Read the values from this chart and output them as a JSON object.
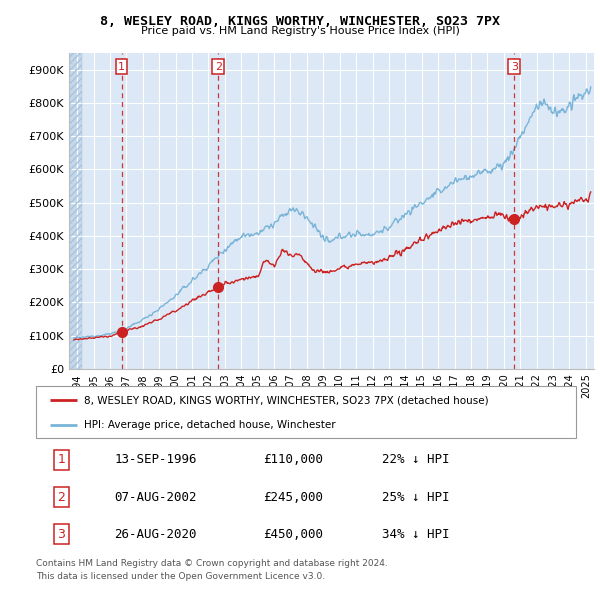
{
  "title1": "8, WESLEY ROAD, KINGS WORTHY, WINCHESTER, SO23 7PX",
  "title2": "Price paid vs. HM Land Registry's House Price Index (HPI)",
  "ylim": [
    0,
    950000
  ],
  "xlim_start": 1993.5,
  "xlim_end": 2025.5,
  "yticks": [
    0,
    100000,
    200000,
    300000,
    400000,
    500000,
    600000,
    700000,
    800000,
    900000
  ],
  "ytick_labels": [
    "£0",
    "£100K",
    "£200K",
    "£300K",
    "£400K",
    "£500K",
    "£600K",
    "£700K",
    "£800K",
    "£900K"
  ],
  "xtick_years": [
    1994,
    1995,
    1996,
    1997,
    1998,
    1999,
    2000,
    2001,
    2002,
    2003,
    2004,
    2005,
    2006,
    2007,
    2008,
    2009,
    2010,
    2011,
    2012,
    2013,
    2014,
    2015,
    2016,
    2017,
    2018,
    2019,
    2020,
    2021,
    2022,
    2023,
    2024,
    2025
  ],
  "hpi_color": "#7ab4d8",
  "price_paid_color": "#cc2222",
  "marker_box_color": "#cc2222",
  "sale1_x": 1996.7,
  "sale1_y": 110000,
  "sale1_label": "1",
  "sale1_date": "13-SEP-1996",
  "sale1_price": "£110,000",
  "sale1_hpi": "22% ↓ HPI",
  "sale2_x": 2002.6,
  "sale2_y": 245000,
  "sale2_label": "2",
  "sale2_date": "07-AUG-2002",
  "sale2_price": "£245,000",
  "sale2_hpi": "25% ↓ HPI",
  "sale3_x": 2020.65,
  "sale3_y": 450000,
  "sale3_label": "3",
  "sale3_date": "26-AUG-2020",
  "sale3_price": "£450,000",
  "sale3_hpi": "34% ↓ HPI",
  "legend_label_price": "8, WESLEY ROAD, KINGS WORTHY, WINCHESTER, SO23 7PX (detached house)",
  "legend_label_hpi": "HPI: Average price, detached house, Winchester",
  "footnote1": "Contains HM Land Registry data © Crown copyright and database right 2024.",
  "footnote2": "This data is licensed under the Open Government Licence v3.0.",
  "bg_color": "#ffffff",
  "plot_bg_color": "#dce8f5",
  "grid_color": "#ffffff",
  "hatch_area_color": "#c5d8eb"
}
